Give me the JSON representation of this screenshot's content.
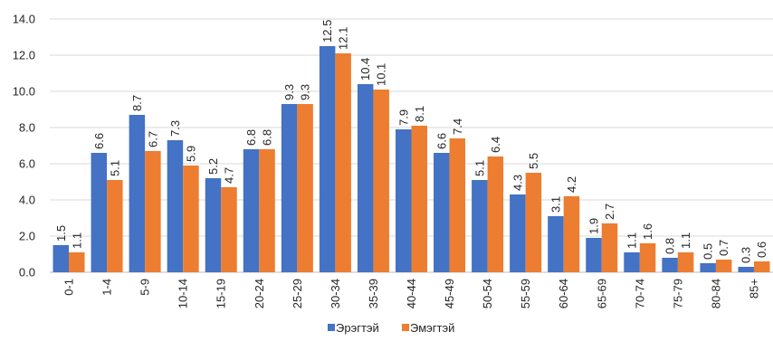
{
  "chart_data": {
    "type": "bar",
    "categories": [
      "0-1",
      "1-4",
      "5-9",
      "10-14",
      "15-19",
      "20-24",
      "25-29",
      "30-34",
      "35-39",
      "40-44",
      "45-49",
      "50-54",
      "55-59",
      "60-64",
      "65-69",
      "70-74",
      "75-79",
      "80-84",
      "85+"
    ],
    "series": [
      {
        "name": "Эрэгтэй",
        "color": "#4472C4",
        "values": [
          1.5,
          6.6,
          8.7,
          7.3,
          5.2,
          6.8,
          9.3,
          12.5,
          10.4,
          7.9,
          6.6,
          5.1,
          4.3,
          3.1,
          1.9,
          1.1,
          0.8,
          0.5,
          0.3
        ]
      },
      {
        "name": "Эмэгтэй",
        "color": "#ED7D31",
        "values": [
          1.1,
          5.1,
          6.7,
          5.9,
          4.7,
          6.8,
          9.3,
          12.1,
          10.1,
          8.1,
          7.4,
          6.4,
          5.5,
          4.2,
          2.7,
          1.6,
          1.1,
          0.7,
          0.6
        ]
      }
    ],
    "ylim": [
      0,
      14
    ],
    "yticks": [
      "0.0",
      "2.0",
      "4.0",
      "6.0",
      "8.0",
      "10.0",
      "12.0",
      "14.0"
    ],
    "grid": true,
    "legend": "bottom"
  }
}
